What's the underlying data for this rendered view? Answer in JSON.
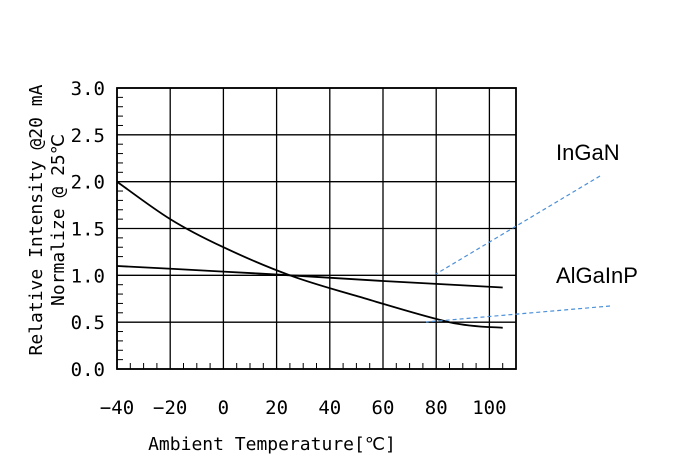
{
  "chart_data": {
    "type": "line",
    "xlabel": "Ambient Temperature[℃]",
    "ylabel": [
      "Relative Intensity @20 mA",
      "Normalize @ 25℃"
    ],
    "xlim": [
      -40,
      110
    ],
    "ylim": [
      0,
      3.0
    ],
    "x_ticks": [
      -40,
      -20,
      0,
      20,
      40,
      60,
      80,
      100
    ],
    "x_tick_labels": [
      "−40",
      "−20",
      "0",
      "20",
      "40",
      "60",
      "80",
      "100"
    ],
    "y_ticks": [
      0,
      0.5,
      1.0,
      1.5,
      2.0,
      2.5,
      3.0
    ],
    "y_tick_labels": [
      "0.0",
      "0.5",
      "1.0",
      "1.5",
      "2.0",
      "2.5",
      "3.0"
    ],
    "grid": true,
    "series": [
      {
        "name": "InGaN",
        "x": [
          -40,
          0,
          25,
          60,
          105
        ],
        "y": [
          1.1,
          1.04,
          1.0,
          0.94,
          0.87
        ]
      },
      {
        "name": "AlGaInP",
        "x": [
          -40,
          -20,
          0,
          25,
          50,
          85,
          105
        ],
        "y": [
          2.0,
          1.6,
          1.3,
          1.0,
          0.78,
          0.5,
          0.44
        ]
      }
    ],
    "annotations": [
      {
        "text": "InGaN",
        "points_to_series": 0
      },
      {
        "text": "AlGaInP",
        "points_to_series": 1
      }
    ]
  }
}
